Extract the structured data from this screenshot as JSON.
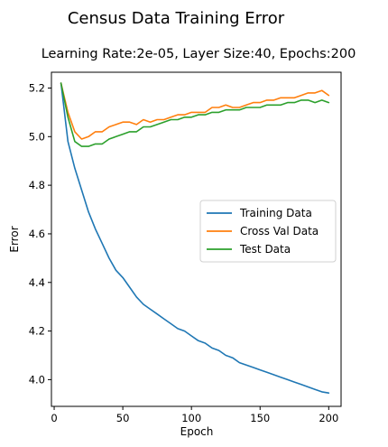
{
  "figure": {
    "suptitle": "Census Data Training Error"
  },
  "chart_data": {
    "type": "line",
    "title": "Learning Rate:2e-05, Layer Size:40, Epochs:200",
    "xlabel": "Epoch",
    "ylabel": "Error",
    "xlim": [
      -2,
      209
    ],
    "ylim": [
      3.89,
      5.265
    ],
    "xticks": [
      0,
      50,
      100,
      150,
      200
    ],
    "yticks": [
      4.0,
      4.2,
      4.4,
      4.6,
      4.8,
      5.0,
      5.2
    ],
    "ytick_labels": [
      "4.0",
      "4.2",
      "4.4",
      "4.6",
      "4.8",
      "5.0",
      "5.2"
    ],
    "grid": false,
    "legend": "center-right",
    "x": [
      5,
      10,
      15,
      20,
      25,
      30,
      35,
      40,
      45,
      50,
      55,
      60,
      65,
      70,
      75,
      80,
      85,
      90,
      95,
      100,
      105,
      110,
      115,
      120,
      125,
      130,
      135,
      140,
      145,
      150,
      155,
      160,
      165,
      170,
      175,
      180,
      185,
      190,
      195,
      200
    ],
    "series": [
      {
        "name": "Training Data",
        "color": "#1f77b4",
        "values": [
          5.22,
          4.98,
          4.87,
          4.78,
          4.69,
          4.62,
          4.56,
          4.5,
          4.45,
          4.42,
          4.38,
          4.34,
          4.31,
          4.29,
          4.27,
          4.25,
          4.23,
          4.21,
          4.2,
          4.18,
          4.16,
          4.15,
          4.13,
          4.12,
          4.1,
          4.09,
          4.07,
          4.06,
          4.05,
          4.04,
          4.03,
          4.02,
          4.01,
          4.0,
          3.99,
          3.98,
          3.97,
          3.96,
          3.95,
          3.945
        ]
      },
      {
        "name": "Cross Val Data",
        "color": "#ff7f0e",
        "values": [
          5.22,
          5.1,
          5.02,
          4.99,
          5.0,
          5.02,
          5.02,
          5.04,
          5.05,
          5.06,
          5.06,
          5.05,
          5.07,
          5.06,
          5.07,
          5.07,
          5.08,
          5.09,
          5.09,
          5.1,
          5.1,
          5.1,
          5.12,
          5.12,
          5.13,
          5.12,
          5.12,
          5.13,
          5.14,
          5.14,
          5.15,
          5.15,
          5.16,
          5.16,
          5.16,
          5.17,
          5.18,
          5.18,
          5.19,
          5.17
        ]
      },
      {
        "name": "Test Data",
        "color": "#2ca02c",
        "values": [
          5.22,
          5.08,
          4.98,
          4.96,
          4.96,
          4.97,
          4.97,
          4.99,
          5.0,
          5.01,
          5.02,
          5.02,
          5.04,
          5.04,
          5.05,
          5.06,
          5.07,
          5.07,
          5.08,
          5.08,
          5.09,
          5.09,
          5.1,
          5.1,
          5.11,
          5.11,
          5.11,
          5.12,
          5.12,
          5.12,
          5.13,
          5.13,
          5.13,
          5.14,
          5.14,
          5.15,
          5.15,
          5.14,
          5.15,
          5.14
        ]
      }
    ]
  }
}
